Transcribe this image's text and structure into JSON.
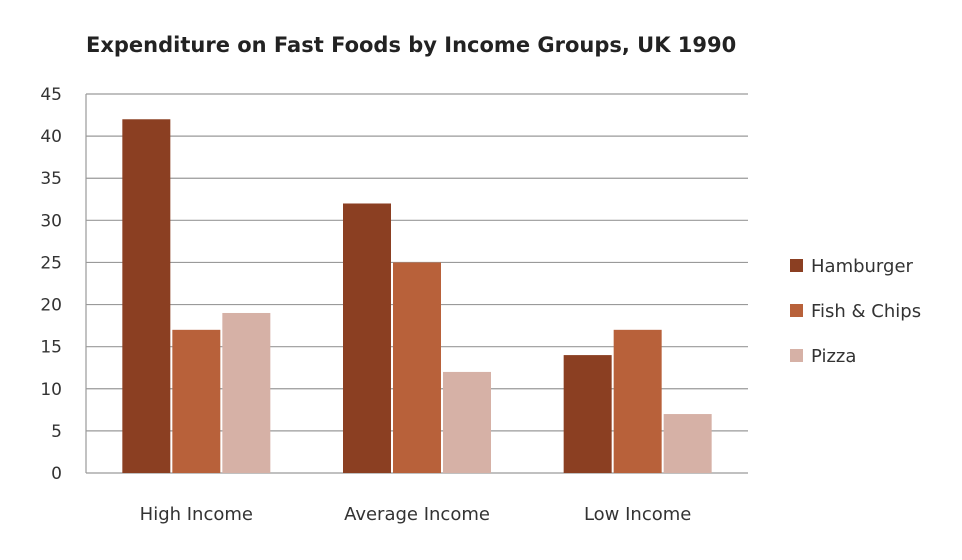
{
  "chart_data": {
    "type": "bar",
    "title": "Expenditure on Fast Foods by Income Groups, UK 1990",
    "xlabel": "",
    "ylabel": "",
    "categories": [
      "High Income",
      "Average Income",
      "Low Income"
    ],
    "series": [
      {
        "name": "Hamburger",
        "values": [
          42,
          32,
          14
        ],
        "color": "#8b3f22"
      },
      {
        "name": "Fish & Chips",
        "values": [
          17,
          25,
          17
        ],
        "color": "#b8613a"
      },
      {
        "name": "Pizza",
        "values": [
          19,
          12,
          7
        ],
        "color": "#d6b1a6"
      }
    ],
    "ylim": [
      0,
      45
    ],
    "yticks": [
      "0",
      "5",
      "10",
      "15",
      "20",
      "25",
      "30",
      "35",
      "40",
      "45"
    ],
    "grid": true,
    "legend_position": "right"
  }
}
